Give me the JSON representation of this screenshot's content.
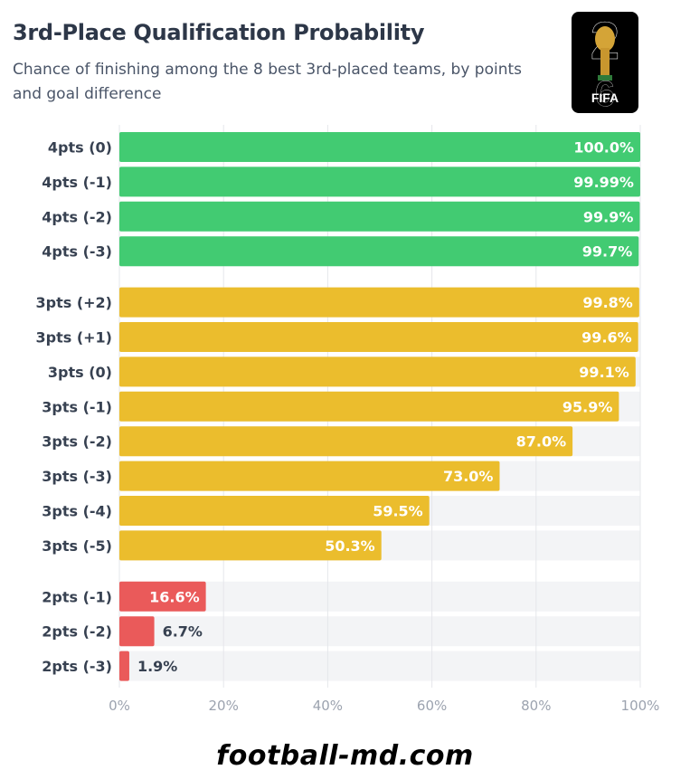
{
  "chart_data": {
    "type": "bar",
    "orientation": "horizontal",
    "title": "3rd-Place Qualification Probability",
    "subtitle": "Chance of finishing among the 8 best 3rd-placed teams, by points and goal difference",
    "categories": [
      "4pts (0)",
      "4pts (-1)",
      "4pts (-2)",
      "4pts (-3)",
      "3pts (+2)",
      "3pts (+1)",
      "3pts (0)",
      "3pts (-1)",
      "3pts (-2)",
      "3pts (-3)",
      "3pts (-4)",
      "3pts (-5)",
      "2pts (-1)",
      "2pts (-2)",
      "2pts (-3)"
    ],
    "values": [
      100.0,
      99.99,
      99.9,
      99.7,
      99.8,
      99.6,
      99.1,
      95.9,
      87.0,
      73.0,
      59.5,
      50.3,
      16.6,
      6.7,
      1.9
    ],
    "value_labels": [
      "100.0%",
      "99.99%",
      "99.9%",
      "99.7%",
      "99.8%",
      "99.6%",
      "99.1%",
      "95.9%",
      "87.0%",
      "73.0%",
      "59.5%",
      "50.3%",
      "16.6%",
      "6.7%",
      "1.9%"
    ],
    "groups": [
      {
        "points": 4,
        "start": 0,
        "count": 4,
        "color": "#42cb72"
      },
      {
        "points": 3,
        "start": 4,
        "count": 8,
        "color": "#ebbd2d"
      },
      {
        "points": 2,
        "start": 12,
        "count": 3,
        "color": "#ea5a5a"
      }
    ],
    "xlim": [
      0,
      100
    ],
    "x_ticks": [
      0,
      20,
      40,
      60,
      80,
      100
    ],
    "x_tick_labels": [
      "0%",
      "20%",
      "40%",
      "60%",
      "80%",
      "100%"
    ],
    "grid": true,
    "xlabel": "",
    "ylabel": ""
  },
  "logo": {
    "digits_top": "2",
    "digits_bottom": "6",
    "text": "FIFA"
  },
  "footer": {
    "text": "football-md.com"
  },
  "colors": {
    "track": "#f3f4f6",
    "grid": "#e5e7eb",
    "axis_text": "#9ca3af",
    "category_text": "#374151",
    "outside_label": "#374151",
    "inside_label": "#ffffff"
  }
}
